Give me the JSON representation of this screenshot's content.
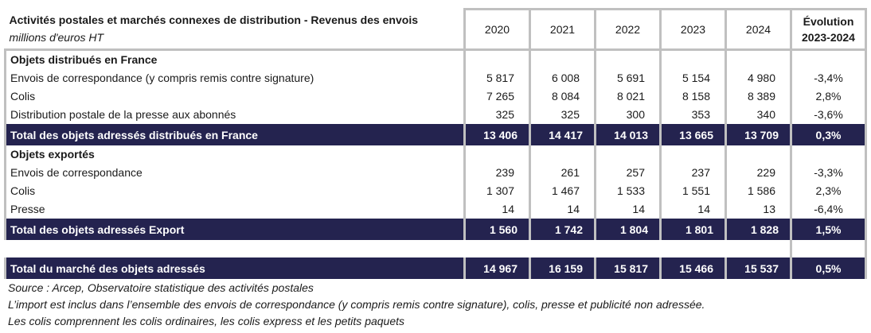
{
  "header": {
    "title": "Activités postales et marchés connexes de distribution - Revenus des envois",
    "subtitle": "millions d'euros HT",
    "years": [
      "2020",
      "2021",
      "2022",
      "2023",
      "2024"
    ],
    "evolution_line1": "Évolution",
    "evolution_line2": "2023-2024"
  },
  "sections": [
    {
      "title": "Objets distribués en France",
      "rows": [
        {
          "label": "Envois de correspondance (y compris remis contre signature)",
          "values": [
            "5 817",
            "6 008",
            "5 691",
            "5 154",
            "4 980"
          ],
          "evolution": "-3,4%"
        },
        {
          "label": "Colis",
          "values": [
            "7 265",
            "8 084",
            "8 021",
            "8 158",
            "8 389"
          ],
          "evolution": "2,8%"
        },
        {
          "label": "Distribution postale de la presse aux abonnés",
          "values": [
            "325",
            "325",
            "300",
            "353",
            "340"
          ],
          "evolution": "-3,6%"
        }
      ],
      "total": {
        "label": "Total des objets adressés distribués en France",
        "values": [
          "13 406",
          "14 417",
          "14 013",
          "13 665",
          "13 709"
        ],
        "evolution": "0,3%"
      }
    },
    {
      "title": "Objets exportés",
      "rows": [
        {
          "label": "Envois de correspondance",
          "values": [
            "239",
            "261",
            "257",
            "237",
            "229"
          ],
          "evolution": "-3,3%"
        },
        {
          "label": "Colis",
          "values": [
            "1 307",
            "1 467",
            "1 533",
            "1 551",
            "1 586"
          ],
          "evolution": "2,3%"
        },
        {
          "label": "Presse",
          "values": [
            "14",
            "14",
            "14",
            "14",
            "13"
          ],
          "evolution": "-6,4%"
        }
      ],
      "total": {
        "label": "Total des objets adressés Export",
        "values": [
          "1 560",
          "1 742",
          "1 804",
          "1 801",
          "1 828"
        ],
        "evolution": "1,5%"
      }
    }
  ],
  "grand_total": {
    "label": "Total du marché des objets adressés",
    "values": [
      "14 967",
      "16 159",
      "15 817",
      "15 466",
      "15 537"
    ],
    "evolution": "0,5%"
  },
  "notes": [
    "Source : Arcep, Observatoire statistique des activités postales",
    "L’import est inclus dans l’ensemble des envois de correspondance (y compris remis contre signature), colis, presse et publicité non adressée.",
    "Les colis comprennent les colis ordinaires, les colis express et les petits paquets"
  ],
  "colors": {
    "total_row_bg": "#24234f",
    "grid": "#c0c0c0"
  }
}
